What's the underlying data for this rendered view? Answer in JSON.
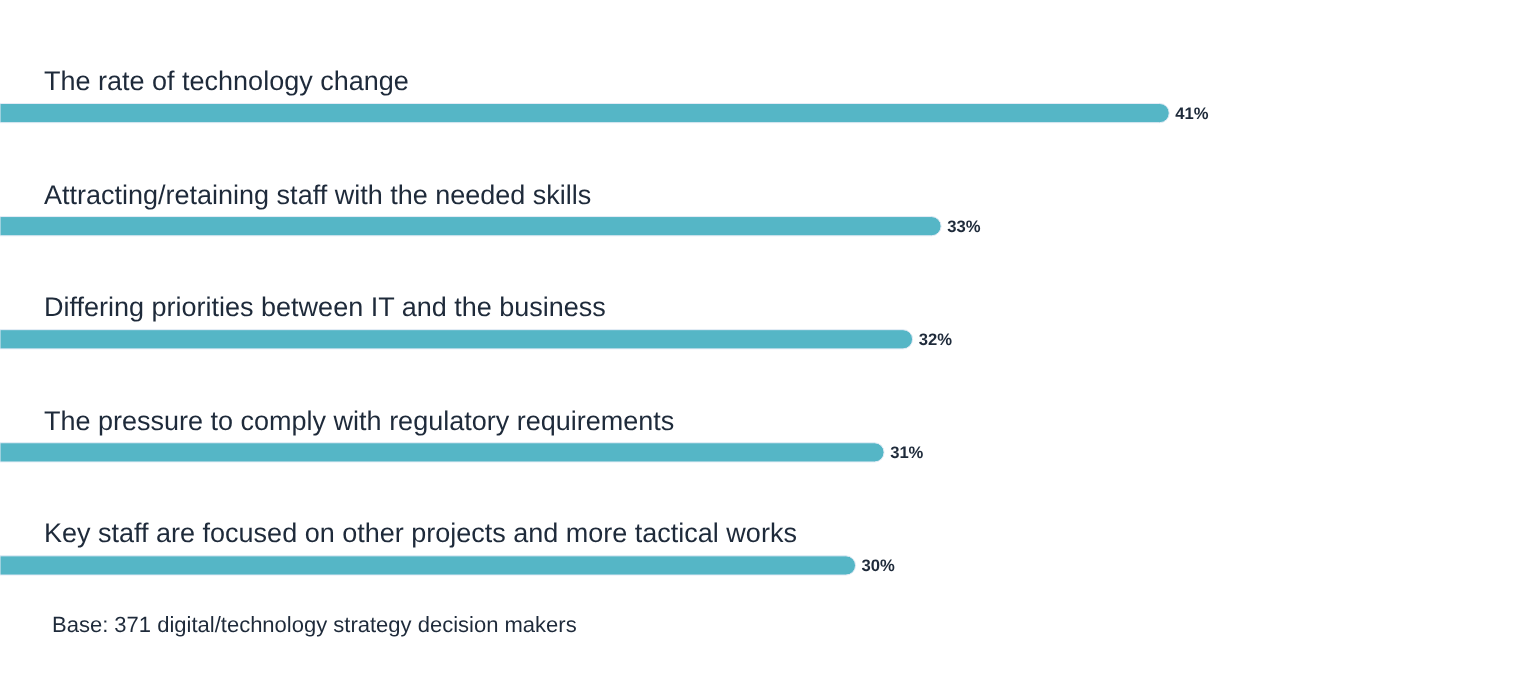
{
  "chart_data": {
    "type": "bar",
    "orientation": "horizontal",
    "categories": [
      "The rate of technology change",
      "Attracting/retaining staff with the needed skills",
      "Differing priorities between IT and the business",
      "The pressure to comply with regulatory requirements",
      "Key staff are focused on other projects and more tactical works"
    ],
    "values": [
      41,
      33,
      32,
      31,
      30
    ],
    "value_labels": [
      "41%",
      "33%",
      "32%",
      "31%",
      "30%"
    ],
    "color": "#55b6c6",
    "xlim": [
      0,
      54
    ],
    "annotations": [
      "Base: 371 digital/technology strategy decision makers"
    ]
  }
}
